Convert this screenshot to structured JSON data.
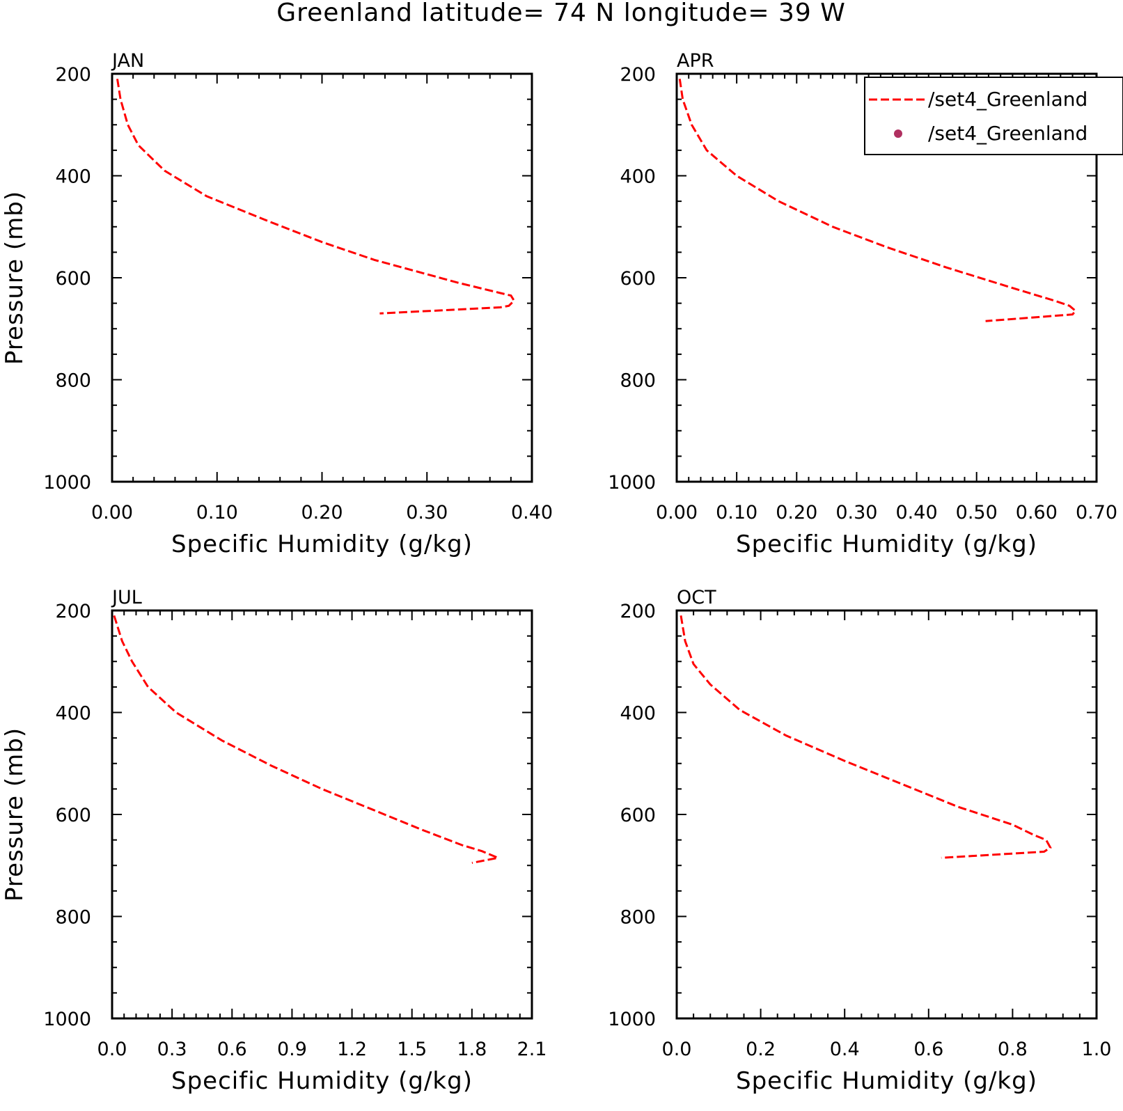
{
  "title": "Greenland  latitude= 74 N longitude= 39 W",
  "legend": {
    "entries": [
      {
        "label": "/set4_Greenland",
        "style": "dashed-line",
        "color": "#ff0000"
      },
      {
        "label": "/set4_Greenland",
        "style": "dot",
        "color": "#b03060"
      }
    ]
  },
  "chart_data": [
    {
      "type": "line",
      "panel": "JAN",
      "xlabel": "Specific Humidity (g/kg)",
      "ylabel": "Pressure (mb)",
      "xlim": [
        0.0,
        0.4
      ],
      "ylim": [
        200,
        1000
      ],
      "y_inverted": true,
      "xticks": [
        "0.00",
        "0.10",
        "0.20",
        "0.30",
        "0.40"
      ],
      "yticks": [
        "200",
        "400",
        "600",
        "800",
        "1000"
      ],
      "series": [
        {
          "color": "#ff0000",
          "dash": "dashed",
          "x": [
            0.005,
            0.008,
            0.015,
            0.025,
            0.05,
            0.09,
            0.15,
            0.2,
            0.25,
            0.33,
            0.37,
            0.38,
            0.383,
            0.378,
            0.37,
            0.255
          ],
          "y": [
            210,
            250,
            300,
            340,
            390,
            440,
            490,
            530,
            565,
            610,
            630,
            635,
            645,
            655,
            658,
            670
          ]
        }
      ]
    },
    {
      "type": "line",
      "panel": "APR",
      "xlabel": "Specific Humidity (g/kg)",
      "ylabel": "",
      "xlim": [
        0.0,
        0.7
      ],
      "ylim": [
        200,
        1000
      ],
      "y_inverted": true,
      "xticks": [
        "0.00",
        "0.10",
        "0.20",
        "0.30",
        "0.40",
        "0.50",
        "0.60",
        "0.70"
      ],
      "yticks": [
        "200",
        "400",
        "600",
        "800",
        "1000"
      ],
      "series": [
        {
          "color": "#ff0000",
          "dash": "dashed",
          "x": [
            0.005,
            0.01,
            0.025,
            0.05,
            0.1,
            0.17,
            0.26,
            0.35,
            0.45,
            0.56,
            0.63,
            0.655,
            0.665,
            0.66,
            0.515
          ],
          "y": [
            210,
            250,
            300,
            350,
            400,
            450,
            500,
            540,
            580,
            620,
            645,
            655,
            665,
            672,
            685
          ]
        }
      ]
    },
    {
      "type": "line",
      "panel": "JUL",
      "xlabel": "Specific Humidity (g/kg)",
      "ylabel": "Pressure (mb)",
      "xlim": [
        0.0,
        2.1
      ],
      "ylim": [
        200,
        1000
      ],
      "y_inverted": true,
      "xticks": [
        "0.0",
        "0.3",
        "0.6",
        "0.9",
        "1.2",
        "1.5",
        "1.8",
        "2.1"
      ],
      "yticks": [
        "200",
        "400",
        "600",
        "800",
        "1000"
      ],
      "series": [
        {
          "color": "#ff0000",
          "dash": "dashed",
          "x": [
            0.01,
            0.05,
            0.1,
            0.18,
            0.32,
            0.55,
            0.8,
            1.05,
            1.3,
            1.55,
            1.75,
            1.85,
            1.93,
            1.8
          ],
          "y": [
            210,
            260,
            300,
            350,
            400,
            455,
            505,
            550,
            590,
            630,
            660,
            672,
            685,
            695
          ]
        }
      ]
    },
    {
      "type": "line",
      "panel": "OCT",
      "xlabel": "Specific Humidity (g/kg)",
      "ylabel": "",
      "xlim": [
        0.0,
        1.0
      ],
      "ylim": [
        200,
        1000
      ],
      "y_inverted": true,
      "xticks": [
        "0.0",
        "0.2",
        "0.4",
        "0.6",
        "0.8",
        "1.0"
      ],
      "yticks": [
        "200",
        "400",
        "600",
        "800",
        "1000"
      ],
      "series": [
        {
          "color": "#ff0000",
          "dash": "dashed",
          "x": [
            0.01,
            0.02,
            0.04,
            0.08,
            0.15,
            0.26,
            0.4,
            0.55,
            0.67,
            0.8,
            0.85,
            0.88,
            0.89,
            0.875,
            0.63
          ],
          "y": [
            210,
            260,
            305,
            345,
            395,
            445,
            495,
            545,
            585,
            620,
            640,
            650,
            665,
            673,
            685
          ]
        }
      ]
    }
  ]
}
